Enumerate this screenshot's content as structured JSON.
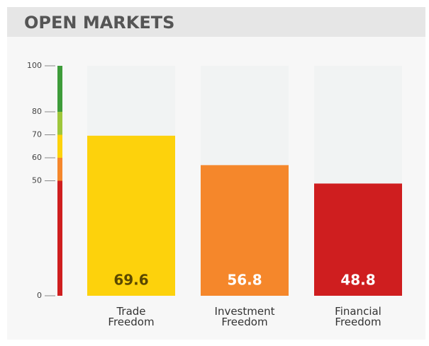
{
  "chart_data": {
    "type": "bar",
    "title": "OPEN MARKETS",
    "categories": [
      "Trade Freedom",
      "Investment Freedom",
      "Financial Freedom"
    ],
    "values": [
      69.6,
      56.8,
      48.8
    ],
    "colors": [
      "#fdd20c",
      "#f5872b",
      "#cf1e1f"
    ],
    "value_label_colors": [
      "#5a4800",
      "#ffffff",
      "#ffffff"
    ],
    "ylim": [
      0,
      100
    ],
    "yticks": [
      0,
      50,
      60,
      70,
      80,
      100
    ],
    "bands": [
      {
        "from": 0,
        "to": 50,
        "color": "#cf1e1f"
      },
      {
        "from": 50,
        "to": 60,
        "color": "#f5872b"
      },
      {
        "from": 60,
        "to": 70,
        "color": "#fdd20c"
      },
      {
        "from": 70,
        "to": 80,
        "color": "#9ec63b"
      },
      {
        "from": 80,
        "to": 100,
        "color": "#3e9c3a"
      }
    ]
  }
}
